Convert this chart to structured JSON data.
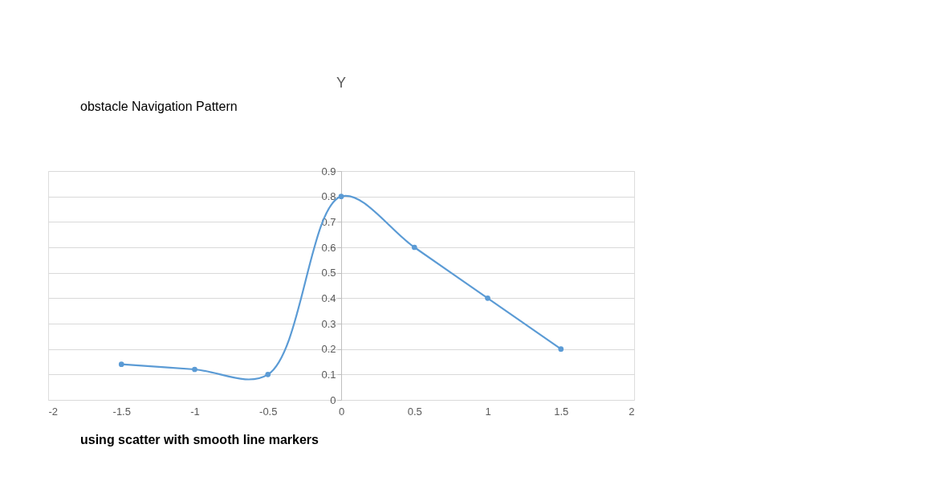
{
  "chart_data": {
    "type": "line",
    "title": "Y",
    "x": [
      1.5,
      1,
      0.5,
      0,
      -0.5,
      -1,
      -1.5
    ],
    "series": [
      {
        "color": "#5b9bd5",
        "values": [
          0.2,
          0.4,
          0.6,
          0.8,
          0.1,
          0.12,
          0.14
        ]
      }
    ],
    "xlim": [
      -2,
      2
    ],
    "xticks": [
      -2,
      -1.5,
      -1,
      -0.5,
      0,
      0.5,
      1,
      1.5,
      2
    ],
    "ylim": [
      0,
      0.9
    ],
    "yticks": [
      0,
      0.1,
      0.2,
      0.3,
      0.4,
      0.5,
      0.6,
      0.7,
      0.8,
      0.9
    ],
    "grid": "y",
    "marker": "circle",
    "line_style": "solid",
    "annotations": [
      "obstacle Navigation Pattern",
      "using scatter with smooth line markers"
    ]
  }
}
